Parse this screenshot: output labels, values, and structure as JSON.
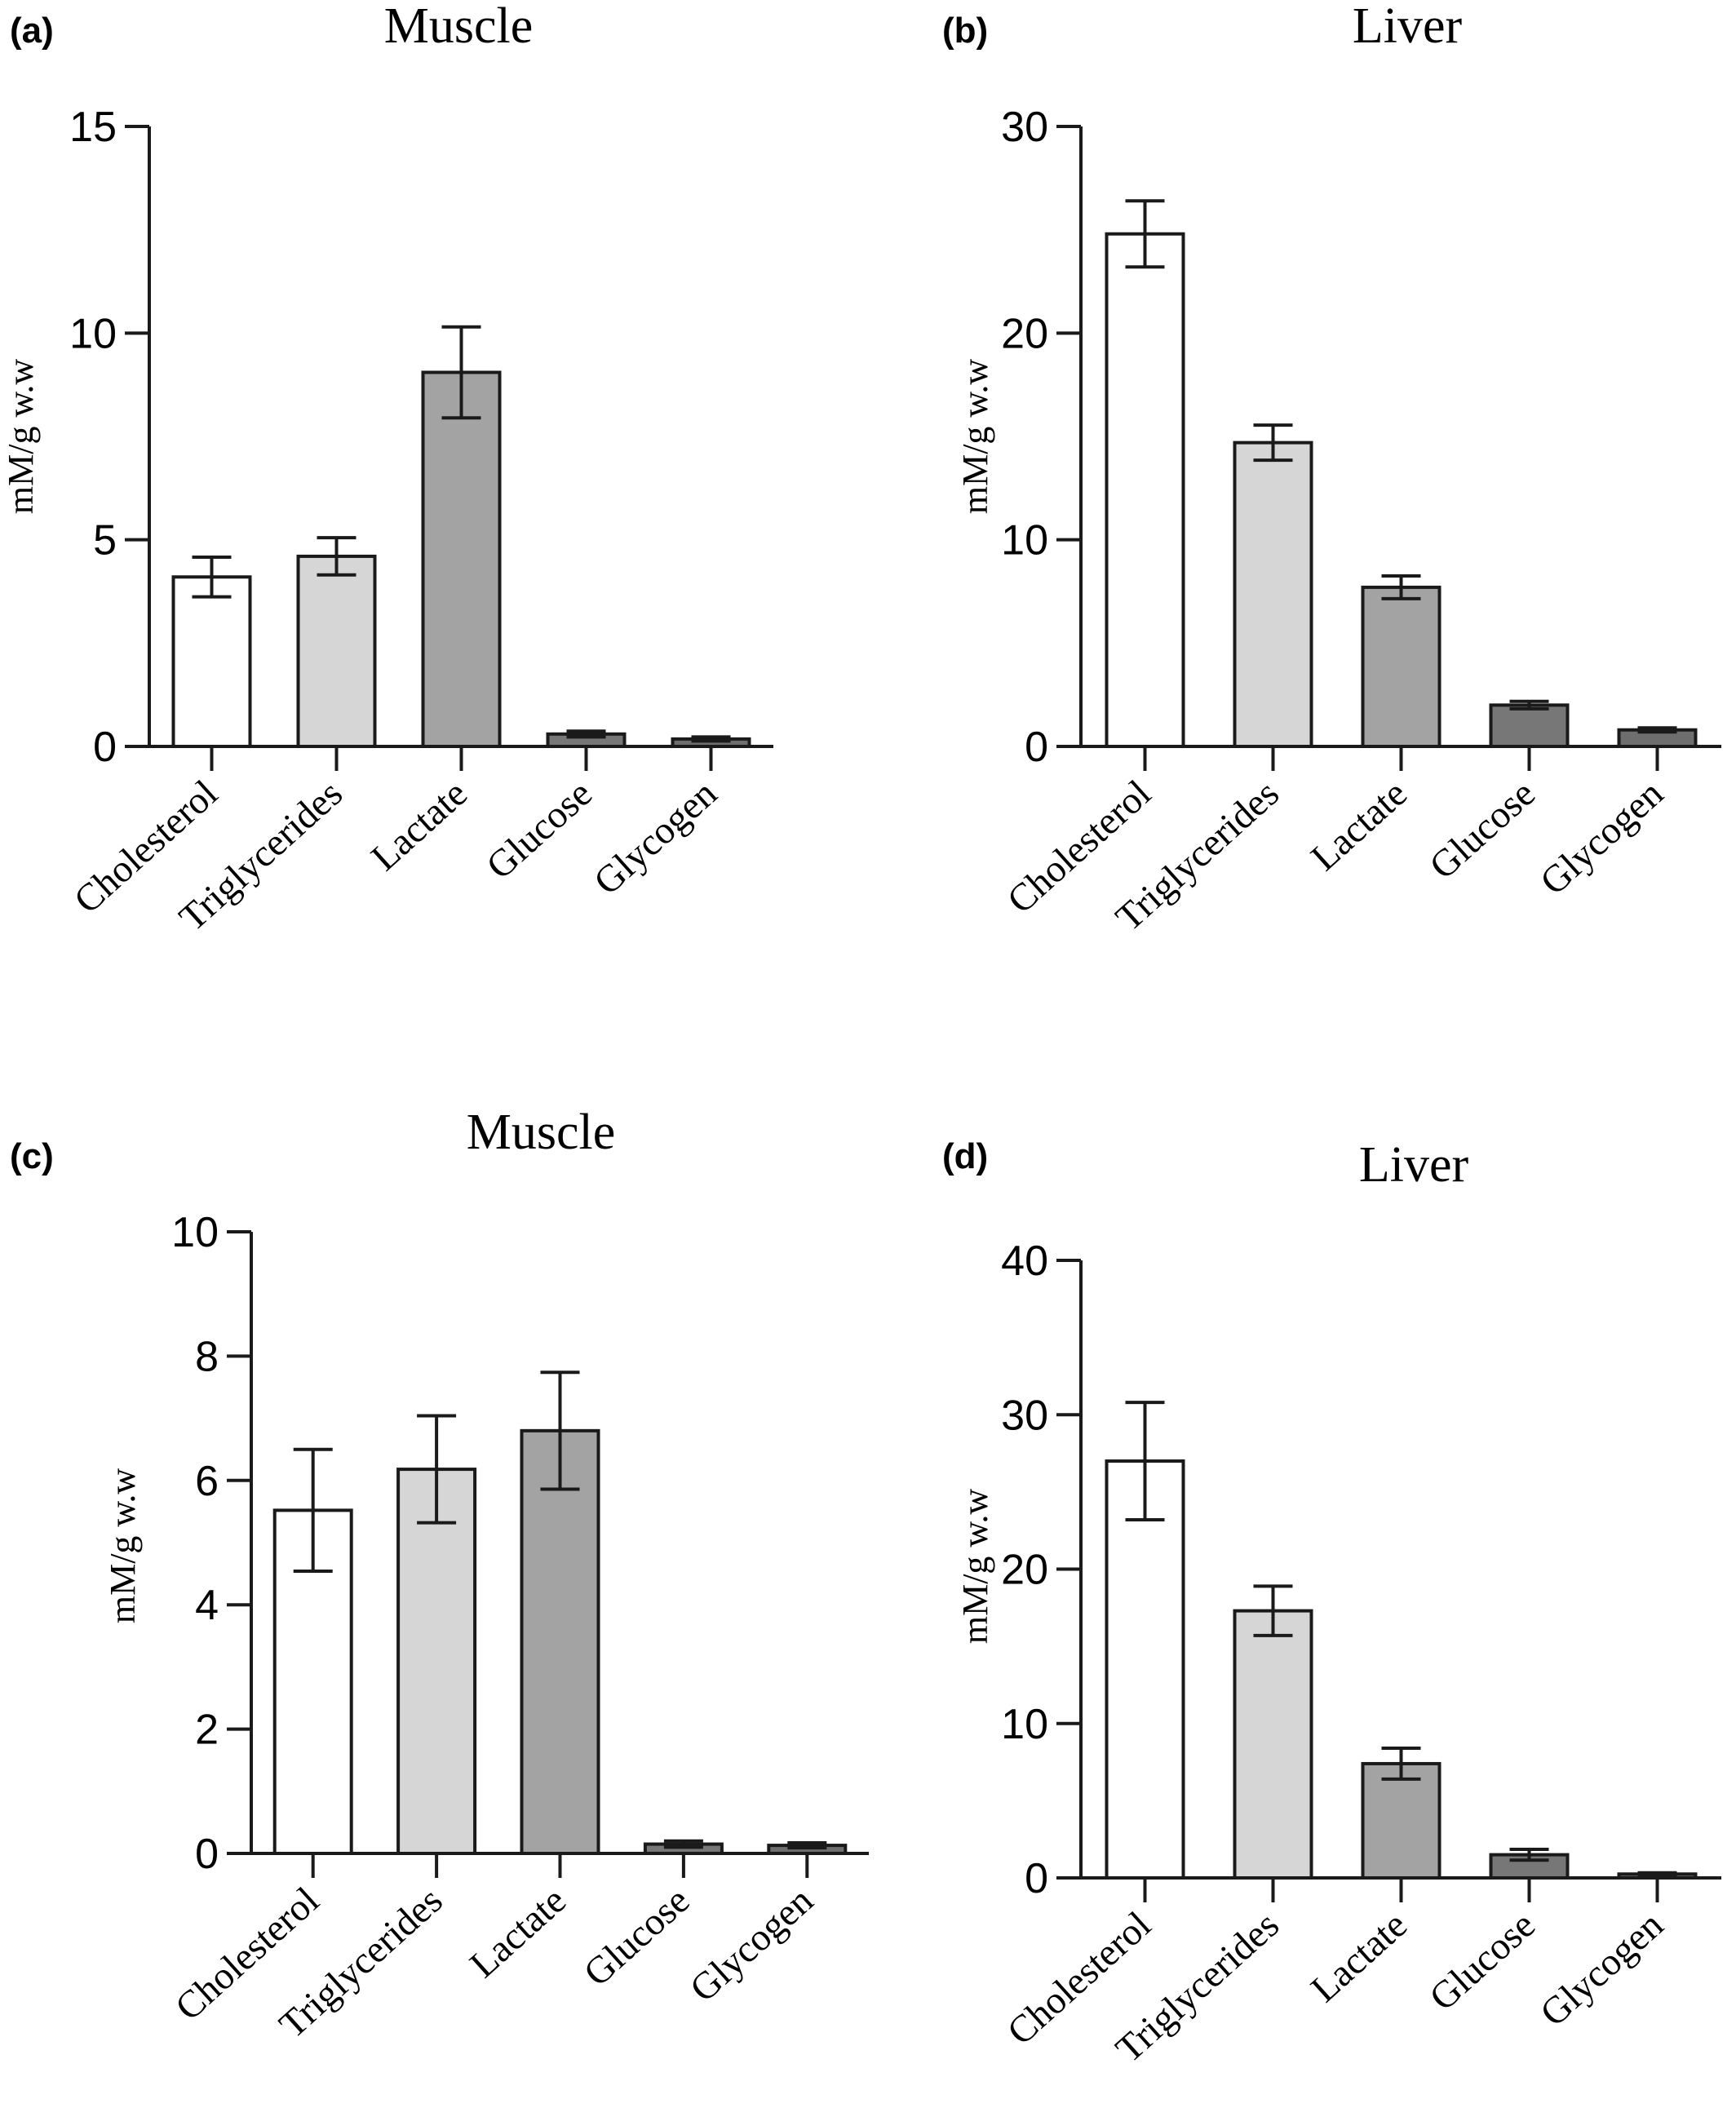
{
  "colors": {
    "Cholesterol": "#ffffff",
    "Triglycerides": "#d6d6d6",
    "Lactate": "#a3a3a3",
    "Glucose": "#777777",
    "Glycogen": "#6e6e6e"
  },
  "chart_data": [
    {
      "panel": "(a)",
      "type": "bar",
      "title": "Muscle",
      "ylabel": "mM/g w.w",
      "categories": [
        "Cholesterol",
        "Triglycerides",
        "Lactate",
        "Glucose",
        "Glycogen"
      ],
      "values": [
        4.1,
        4.6,
        9.05,
        0.3,
        0.18
      ],
      "errors": [
        0.48,
        0.45,
        1.1,
        0.07,
        0.05
      ],
      "ylim": [
        0,
        15
      ],
      "yticks": [
        0,
        5,
        10,
        15
      ]
    },
    {
      "panel": "(b)",
      "type": "bar",
      "title": "Liver",
      "ylabel": "mM/g w.w",
      "categories": [
        "Cholesterol",
        "Triglycerides",
        "Lactate",
        "Glucose",
        "Glycogen"
      ],
      "values": [
        24.8,
        14.7,
        7.7,
        2.0,
        0.8
      ],
      "errors": [
        1.6,
        0.85,
        0.55,
        0.18,
        0.1
      ],
      "ylim": [
        0,
        30
      ],
      "yticks": [
        0,
        10,
        20,
        30
      ]
    },
    {
      "panel": "(c)",
      "type": "bar",
      "title": "Muscle",
      "ylabel": "mM/g w.w",
      "categories": [
        "Cholesterol",
        "Triglycerides",
        "Lactate",
        "Glucose",
        "Glycogen"
      ],
      "values": [
        5.52,
        6.18,
        6.8,
        0.15,
        0.13
      ],
      "errors": [
        0.98,
        0.86,
        0.94,
        0.05,
        0.04
      ],
      "ylim": [
        0,
        10
      ],
      "yticks": [
        0,
        2,
        4,
        6,
        8,
        10
      ]
    },
    {
      "panel": "(d)",
      "type": "bar",
      "title": "Liver",
      "ylabel": "mM/g w.w",
      "categories": [
        "Cholesterol",
        "Triglycerides",
        "Lactate",
        "Glucose",
        "Glycogen"
      ],
      "values": [
        27.0,
        17.3,
        7.4,
        1.5,
        0.25
      ],
      "errors": [
        3.8,
        1.6,
        1.0,
        0.35,
        0.08
      ],
      "ylim": [
        0,
        40
      ],
      "yticks": [
        0,
        10,
        20,
        30,
        40
      ]
    }
  ]
}
